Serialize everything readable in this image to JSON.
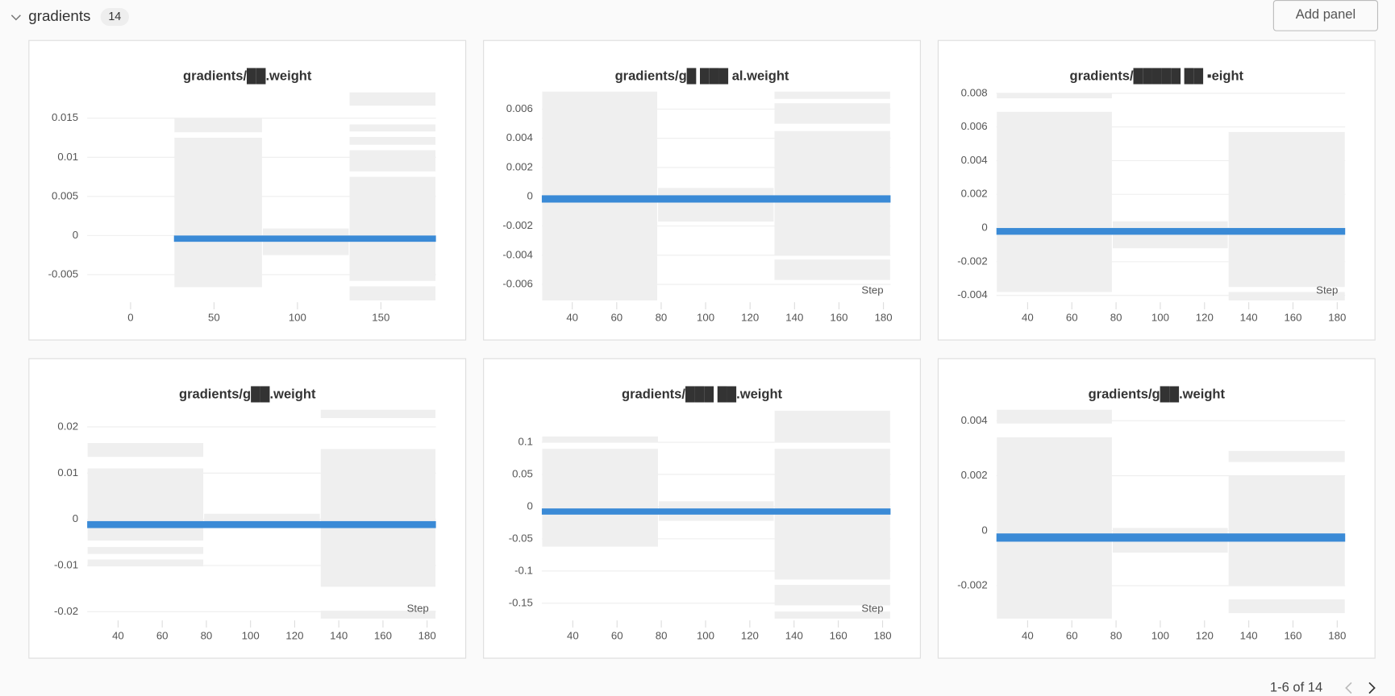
{
  "header": {
    "title": "gradients",
    "count": "14",
    "button": "Add panel"
  },
  "pagination": {
    "text": "1-6 of 14"
  },
  "chart_data": [
    {
      "type": "heatmap",
      "title": "gradients/██.weight",
      "xlim": [
        -26,
        183
      ],
      "xticks": [
        0,
        50,
        100,
        150
      ],
      "ylim": [
        -0.0083,
        0.0184
      ],
      "yticks": [
        0.015,
        0.01,
        0.005,
        0,
        -0.005
      ],
      "grid": true,
      "color": "#efefef",
      "band_color": "#3a8ad6",
      "columns": [
        {
          "x": [
            26,
            79
          ],
          "bins": [
            [
              0.015,
              0.0132
            ],
            [
              0.0125,
              -0.0066
            ]
          ]
        },
        {
          "x": [
            79,
            131
          ],
          "bins": [
            [
              0.0009,
              -0.0025
            ]
          ]
        },
        {
          "x": [
            131,
            183
          ],
          "bins": [
            [
              0.0183,
              0.0166
            ],
            [
              0.0142,
              0.0133
            ],
            [
              0.0126,
              0.0116
            ],
            [
              0.0109,
              0.0082
            ],
            [
              0.0075,
              -0.0058
            ],
            [
              -0.0065,
              -0.0083
            ]
          ]
        }
      ],
      "band": [
        0,
        -0.0008
      ]
    },
    {
      "type": "heatmap",
      "title": "gradients/g█ ███ al.weight",
      "x_label": "Step",
      "xlim": [
        26.3,
        183.2
      ],
      "xticks": [
        40,
        60,
        80,
        100,
        120,
        140,
        160,
        180
      ],
      "ylim": [
        -0.0071,
        0.0072
      ],
      "yticks": [
        0.006,
        0.004,
        0.002,
        0,
        -0.002,
        -0.004,
        -0.006
      ],
      "grid": true,
      "color": "#efefef",
      "band_color": "#3a8ad6",
      "columns": [
        {
          "x": [
            26.3,
            78.4
          ],
          "bins": [
            [
              0.0072,
              -0.0071
            ]
          ]
        },
        {
          "x": [
            78.4,
            130.8
          ],
          "bins": [
            [
              0.0006,
              -0.0017
            ]
          ]
        },
        {
          "x": [
            130.8,
            183.2
          ],
          "bins": [
            [
              0.0072,
              0.0067
            ],
            [
              0.0064,
              0.005
            ],
            [
              0.0045,
              -0.004
            ],
            [
              -0.0043,
              -0.0057
            ]
          ]
        }
      ],
      "band": [
        0.0001,
        -0.0004
      ]
    },
    {
      "type": "heatmap",
      "title": "gradients/█████ ██ ▪eight",
      "x_label": "Step",
      "xlim": [
        25.9,
        183.6
      ],
      "xticks": [
        40,
        60,
        80,
        100,
        120,
        140,
        160,
        180
      ],
      "ylim": [
        -0.0043,
        0.0081
      ],
      "yticks": [
        0.008,
        0.006,
        0.004,
        0.002,
        0,
        -0.002,
        -0.004
      ],
      "grid": true,
      "color": "#efefef",
      "band_color": "#3a8ad6",
      "columns": [
        {
          "x": [
            25.9,
            78.3
          ],
          "bins": [
            [
              0.008,
              0.0077
            ],
            [
              0.0069,
              -0.0038
            ]
          ]
        },
        {
          "x": [
            78.3,
            130.7
          ],
          "bins": [
            [
              0.0004,
              -0.0012
            ]
          ]
        },
        {
          "x": [
            130.7,
            183.6
          ],
          "bins": [
            [
              0.0057,
              -0.0035
            ],
            [
              -0.0038,
              -0.0043
            ]
          ]
        }
      ],
      "band": [
        0,
        -0.0004
      ]
    },
    {
      "type": "heatmap",
      "title": "gradients/g██.weight",
      "x_label": "Step",
      "xlim": [
        26,
        184
      ],
      "xticks": [
        40,
        60,
        80,
        100,
        120,
        140,
        160,
        180
      ],
      "ylim": [
        -0.0215,
        0.0237
      ],
      "yticks": [
        0.02,
        0.01,
        0,
        -0.01,
        -0.02
      ],
      "grid": true,
      "color": "#efefef",
      "band_color": "#3a8ad6",
      "columns": [
        {
          "x": [
            26,
            78.8
          ],
          "bins": [
            [
              0.0165,
              0.0135
            ],
            [
              0.011,
              -0.0046
            ],
            [
              -0.006,
              -0.0075
            ],
            [
              -0.0087,
              -0.0102
            ]
          ]
        },
        {
          "x": [
            78.8,
            131.6
          ],
          "bins": [
            [
              0.0012,
              -0.0019
            ]
          ]
        },
        {
          "x": [
            131.6,
            184
          ],
          "bins": [
            [
              0.0237,
              0.0219
            ],
            [
              0.0152,
              -0.0146
            ],
            [
              -0.0198,
              -0.0215
            ]
          ]
        }
      ],
      "band": [
        -0.0004,
        -0.0019
      ]
    },
    {
      "type": "heatmap",
      "title": "gradients/███ ██.weight",
      "x_label": "Step",
      "xlim": [
        26,
        183.6
      ],
      "xticks": [
        40,
        60,
        80,
        100,
        120,
        140,
        160,
        180
      ],
      "ylim": [
        -0.174,
        0.1505
      ],
      "yticks": [
        0.1,
        0.05,
        0,
        -0.05,
        -0.1,
        -0.15
      ],
      "grid": true,
      "color": "#efefef",
      "band_color": "#3a8ad6",
      "columns": [
        {
          "x": [
            26,
            78.7
          ],
          "bins": [
            [
              0.109,
              0.0994
            ],
            [
              0.0898,
              -0.0621
            ]
          ]
        },
        {
          "x": [
            78.7,
            131
          ],
          "bins": [
            [
              0.0083,
              -0.0221
            ]
          ]
        },
        {
          "x": [
            131,
            183.6
          ],
          "bins": [
            [
              0.149,
              0.0994
            ],
            [
              0.0898,
              -0.1132
            ],
            [
              -0.1215,
              -0.1533
            ],
            [
              -0.163,
              -0.174
            ]
          ]
        }
      ],
      "band": [
        -0.0028,
        -0.0124
      ]
    },
    {
      "type": "heatmap",
      "title": "gradients/g██.weight",
      "xlim": [
        25.9,
        183.6
      ],
      "xticks": [
        40,
        60,
        80,
        100,
        120,
        140,
        160,
        180
      ],
      "ylim": [
        -0.0032,
        0.0044
      ],
      "yticks": [
        0.004,
        0.002,
        0,
        -0.002
      ],
      "grid": true,
      "color": "#efefef",
      "band_color": "#3a8ad6",
      "columns": [
        {
          "x": [
            25.9,
            78.3
          ],
          "bins": [
            [
              0.0044,
              0.0039
            ],
            [
              0.0034,
              -0.0032
            ]
          ]
        },
        {
          "x": [
            78.3,
            130.7
          ],
          "bins": [
            [
              0.0001,
              -0.0008
            ]
          ]
        },
        {
          "x": [
            130.7,
            183.6
          ],
          "bins": [
            [
              0.0029,
              0.0025
            ],
            [
              0.002,
              -0.002
            ],
            [
              -0.0025,
              -0.003
            ]
          ]
        }
      ],
      "band": [
        -0.0001,
        -0.0004
      ]
    }
  ]
}
